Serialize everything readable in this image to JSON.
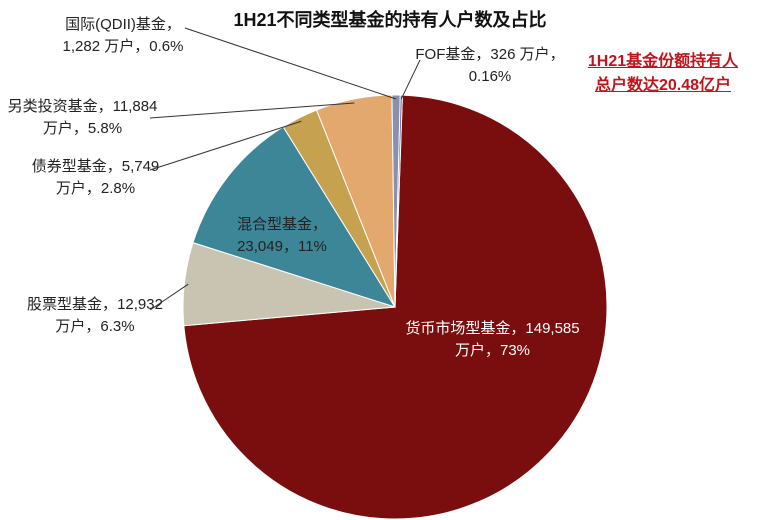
{
  "chart_data": {
    "type": "pie",
    "title": "1H21不同类型基金的持有人户数及占比",
    "annotation": "1H21基金份额持有人总户数达20.48亿户",
    "categories": [
      "货币市场型基金",
      "股票型基金",
      "混合型基金",
      "债券型基金",
      "另类投资基金",
      "国际(QDII)基金",
      "FOF基金"
    ],
    "values": [
      149585,
      12932,
      23049,
      5749,
      11884,
      1282,
      326
    ],
    "value_labels": [
      "149,585 万户",
      "12,932 万户",
      "23,049",
      "5,749 万户",
      "11,884 万户",
      "1,282 万户",
      "326 万户"
    ],
    "percent_labels": [
      "73%",
      "6.3%",
      "11%",
      "2.8%",
      "5.8%",
      "0.6%",
      "0.16%"
    ],
    "label_separator": "，",
    "colors": [
      "#7a0d0d",
      "#c9c3b2",
      "#3c8698",
      "#c6a250",
      "#e2a86e",
      "#8a8fae",
      "#6f5c90"
    ]
  }
}
